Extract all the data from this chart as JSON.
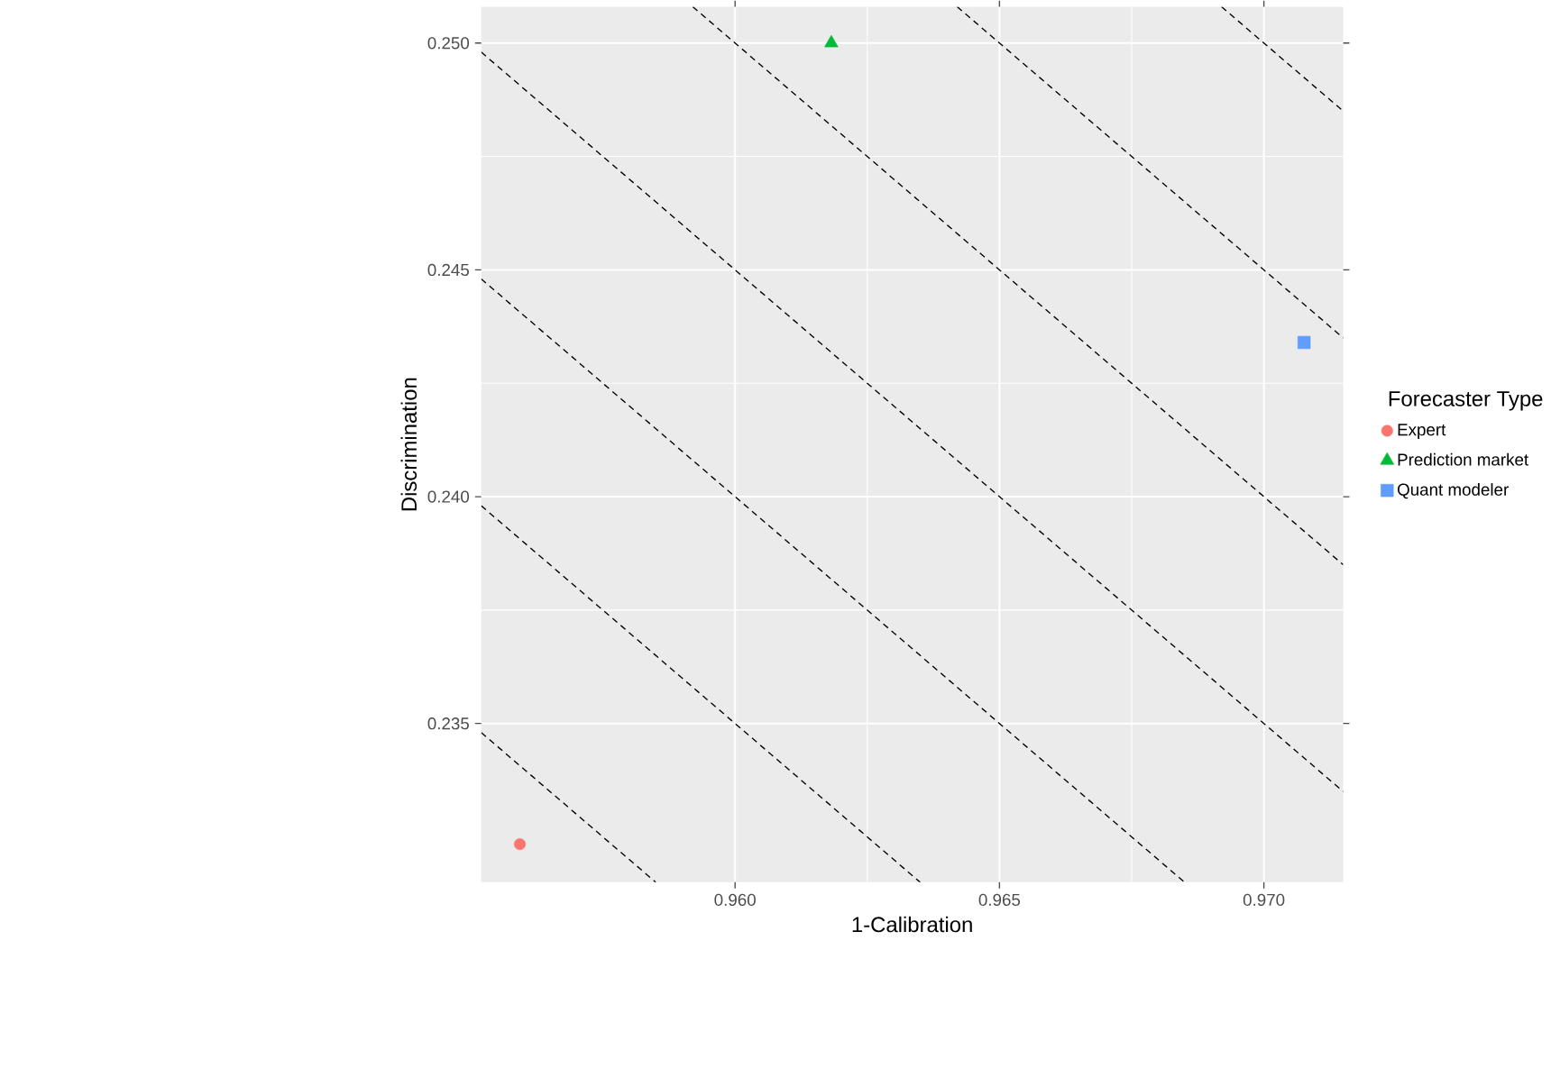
{
  "chart_data": {
    "type": "scatter",
    "xlabel": "1-Calibration",
    "ylabel": "Discrimination",
    "legend_title": "Forecaster Type",
    "xlim": [
      0.9552,
      0.9715
    ],
    "ylim": [
      0.2315,
      0.2508
    ],
    "xticks": [
      {
        "value": 0.96,
        "label": "0.960"
      },
      {
        "value": 0.965,
        "label": "0.965"
      },
      {
        "value": 0.97,
        "label": "0.970"
      }
    ],
    "yticks": [
      {
        "value": 0.235,
        "label": "0.235"
      },
      {
        "value": 0.24,
        "label": "0.240"
      },
      {
        "value": 0.245,
        "label": "0.245"
      },
      {
        "value": 0.25,
        "label": "0.250"
      }
    ],
    "grid": true,
    "legend": "right",
    "series": [
      {
        "name": "Expert",
        "color": "#f8766d",
        "marker": "circle",
        "x": [
          0.95593
        ],
        "values": [
          0.23234
        ]
      },
      {
        "name": "Prediction market",
        "color": "#00ba38",
        "marker": "triangle",
        "x": [
          0.96182
        ],
        "values": [
          0.25
        ]
      },
      {
        "name": "Quant modeler",
        "color": "#619cff",
        "marker": "square",
        "x": [
          0.97076
        ],
        "values": [
          0.2434
        ]
      },
      {
        "type": "line",
        "color": "#000000",
        "line_style": "dashed",
        "marker": "none",
        "x": [
          0.9552,
          0.9585
        ],
        "values": [
          0.2348,
          0.2315
        ]
      },
      {
        "type": "line",
        "color": "#000000",
        "line_style": "dashed",
        "marker": "none",
        "x": [
          0.9552,
          0.9635
        ],
        "values": [
          0.2398,
          0.2315
        ]
      },
      {
        "type": "line",
        "color": "#000000",
        "line_style": "dashed",
        "marker": "none",
        "x": [
          0.9552,
          0.9685
        ],
        "values": [
          0.2448,
          0.2315
        ]
      },
      {
        "type": "line",
        "color": "#000000",
        "line_style": "dashed",
        "marker": "none",
        "x": [
          0.9552,
          0.9715
        ],
        "values": [
          0.2498,
          0.2335
        ]
      },
      {
        "type": "line",
        "color": "#000000",
        "line_style": "dashed",
        "marker": "none",
        "x": [
          0.9592,
          0.9715
        ],
        "values": [
          0.2508,
          0.2385
        ]
      },
      {
        "type": "line",
        "color": "#000000",
        "line_style": "dashed",
        "marker": "none",
        "x": [
          0.9642,
          0.9715
        ],
        "values": [
          0.2508,
          0.2435
        ]
      },
      {
        "type": "line",
        "color": "#000000",
        "line_style": "dashed",
        "marker": "none",
        "x": [
          0.9692,
          0.9715
        ],
        "values": [
          0.2508,
          0.2485
        ]
      }
    ]
  }
}
